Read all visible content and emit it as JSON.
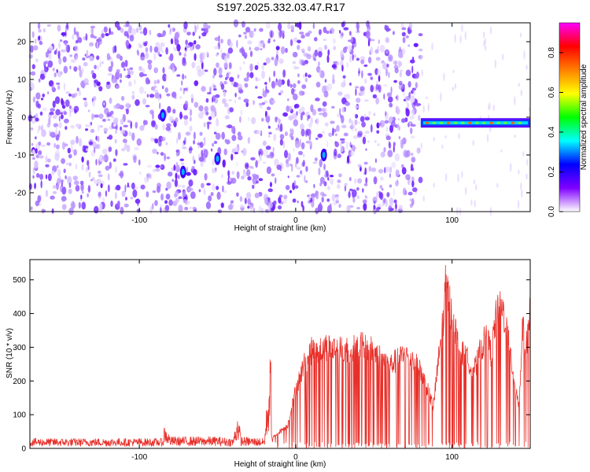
{
  "title": "S197.2025.332.03.47.R17",
  "chart_data": [
    {
      "type": "heatmap",
      "xlabel": "Height of straight line (km)",
      "ylabel": "Frequency (Hz)",
      "xlim": [
        -170,
        150
      ],
      "ylim": [
        -25,
        25
      ],
      "x_ticks": [
        -100,
        0,
        100
      ],
      "y_ticks": [
        -20,
        -10,
        0,
        10,
        20
      ],
      "grid": false,
      "colorbar": {
        "label": "Normalized spectral amplitude",
        "range": [
          0.0,
          0.95
        ],
        "ticks": [
          "0.0",
          "0.2",
          "0.4",
          "0.6",
          "0.8"
        ],
        "colors": [
          "#ffffff",
          "#8000ff",
          "#0000ff",
          "#00ffff",
          "#00ff00",
          "#ffff00",
          "#ff8000",
          "#ff0000",
          "#ff00ff"
        ]
      },
      "features": [
        {
          "x_range": [
            80,
            150
          ],
          "y": -1.5,
          "level": 0.55
        },
        {
          "x": -85,
          "y": 0.5,
          "level": 0.3
        },
        {
          "x": -72,
          "y": -14.5,
          "level": 0.25
        },
        {
          "x": -50,
          "y": -11,
          "level": 0.3
        },
        {
          "x": 18,
          "y": -10,
          "level": 0.25
        }
      ]
    },
    {
      "type": "line",
      "xlabel": "Height of straight line (km)",
      "ylabel": "SNR (10 * v/v)",
      "xlim": [
        -170,
        150
      ],
      "ylim": [
        0,
        560
      ],
      "x_ticks": [
        -100,
        0,
        100
      ],
      "y_ticks": [
        0,
        100,
        200,
        300,
        400,
        500
      ],
      "grid": false,
      "series": [
        {
          "color": "#e8302a",
          "envelope_x": [
            -170,
            -85,
            -84,
            -80,
            -50,
            -40,
            -37,
            -35,
            -20,
            -16,
            -15,
            -5,
            0,
            5,
            10,
            20,
            30,
            40,
            50,
            60,
            65,
            70,
            75,
            80,
            85,
            88,
            92,
            95,
            96,
            100,
            105,
            110,
            115,
            118,
            122,
            125,
            128,
            130,
            133,
            135,
            140,
            143,
            145,
            147,
            150
          ],
          "envelope_y": [
            30,
            30,
            70,
            35,
            35,
            30,
            110,
            35,
            30,
            300,
            35,
            80,
            200,
            280,
            330,
            345,
            330,
            350,
            330,
            280,
            300,
            320,
            300,
            260,
            190,
            140,
            330,
            470,
            560,
            450,
            330,
            300,
            270,
            330,
            380,
            320,
            440,
            470,
            460,
            400,
            230,
            140,
            420,
            330,
            470
          ]
        }
      ]
    }
  ]
}
